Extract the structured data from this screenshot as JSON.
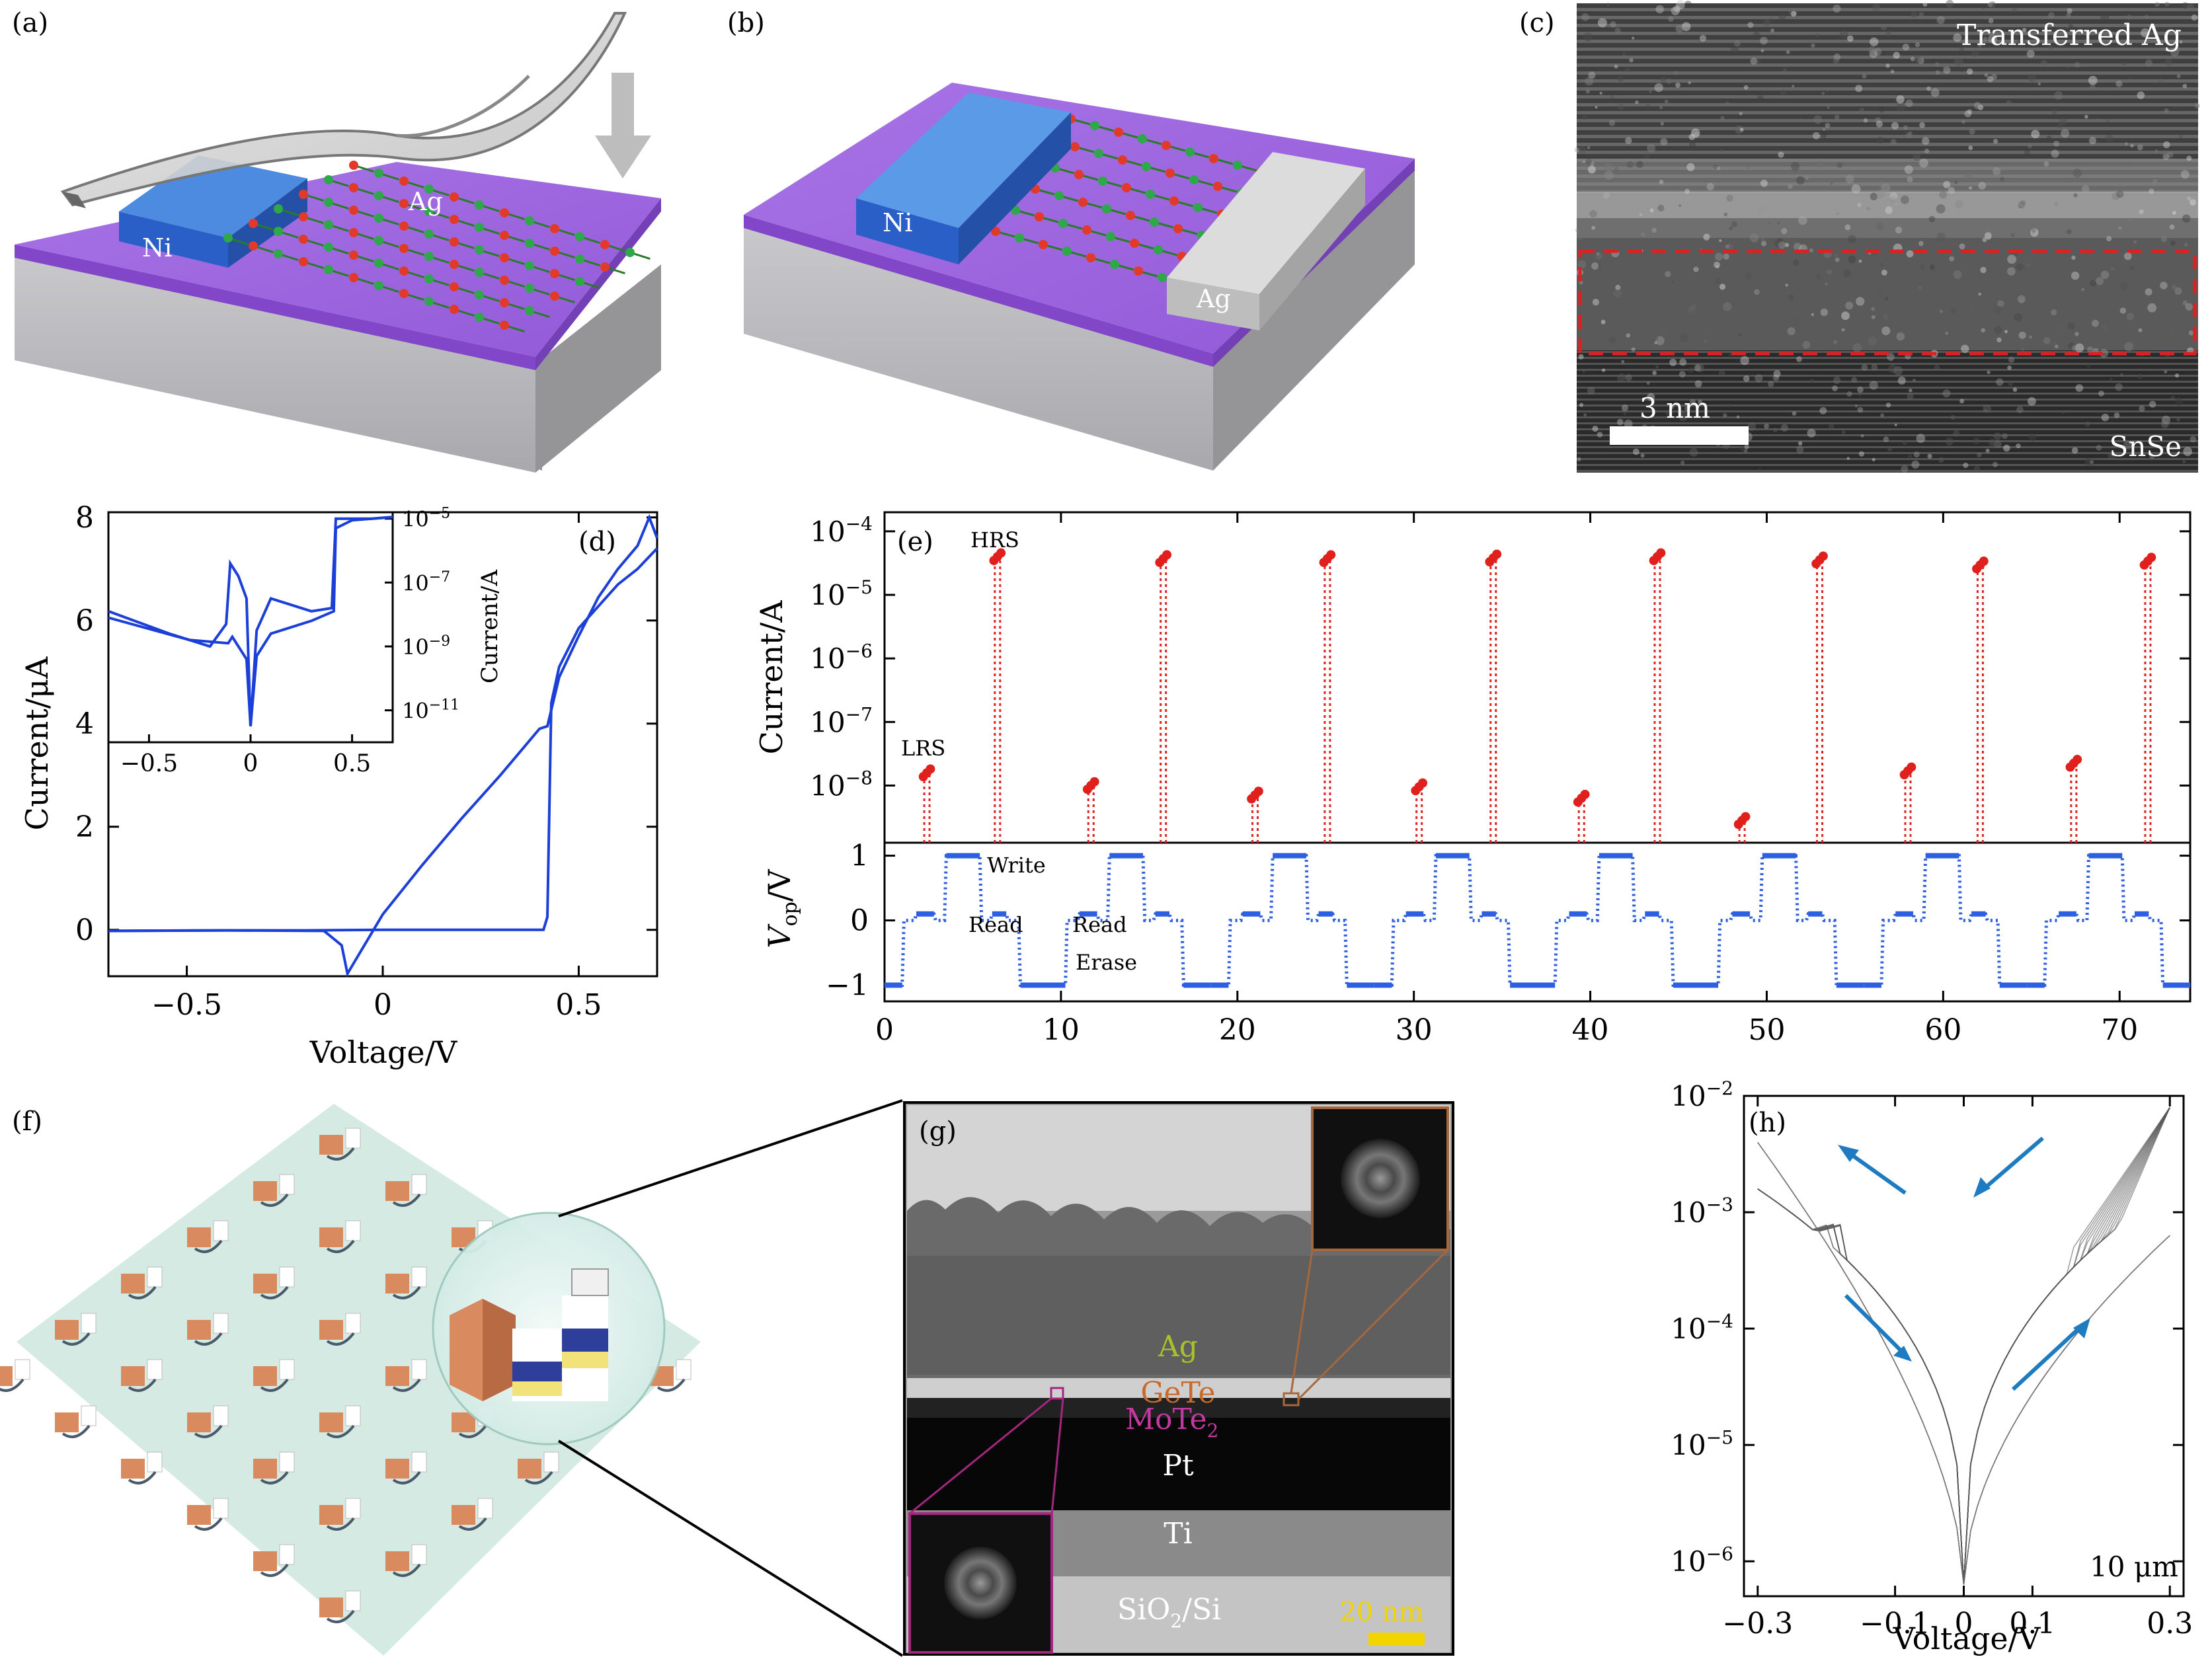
{
  "panel_letters": [
    "(a)",
    "(b)",
    "(c)",
    "(d)",
    "(e)",
    "(f)",
    "(g)",
    "(h)"
  ],
  "panel_a": {
    "labels": [
      "Ni",
      "Ag"
    ]
  },
  "panel_b": {
    "labels": [
      "Ni",
      "Ag"
    ]
  },
  "panel_c": {
    "title_label": "Transferred Ag",
    "scale_label": "3 nm",
    "bottom_label": "SnSe"
  },
  "panel_g": {
    "layer_labels": [
      "Ag",
      "GeTe",
      "MoTe",
      "Pt",
      "Ti",
      "SiO",
      "/Si"
    ],
    "scale_label": "20 nm"
  },
  "panel_h": {
    "note": "10 μm"
  },
  "chart_data": [
    {
      "id": "d",
      "type": "line",
      "xlabel": "Voltage/V",
      "ylabel": "Current/μA",
      "xlim": [
        -0.7,
        0.7
      ],
      "ylim": [
        -0.9,
        8.1
      ],
      "xticks": [
        "−0.5",
        "0",
        "0.5"
      ],
      "yticks": [
        "0",
        "2",
        "4",
        "6",
        "8"
      ],
      "series": [
        {
          "x": [
            -0.7,
            -0.4,
            -0.15,
            -0.105,
            -0.09,
            0.0,
            0.1,
            0.2,
            0.3,
            0.4,
            0.42,
            0.45,
            0.5,
            0.55,
            0.6,
            0.65,
            0.68,
            0.7
          ],
          "y": [
            -0.02,
            -0.01,
            -0.02,
            -0.3,
            -0.85,
            0.3,
            1.25,
            2.15,
            3.0,
            3.9,
            3.95,
            4.9,
            5.7,
            6.45,
            7.0,
            7.45,
            8.0,
            7.6
          ]
        },
        {
          "x": [
            0.7,
            0.65,
            0.6,
            0.5,
            0.45,
            0.43,
            0.42,
            0.41,
            0.3,
            0.0,
            -0.2,
            -0.4,
            -0.7
          ],
          "y": [
            7.4,
            7.0,
            6.7,
            5.85,
            5.1,
            4.4,
            0.25,
            0.0,
            0.0,
            0.0,
            -0.01,
            -0.01,
            -0.02
          ]
        }
      ],
      "inset": {
        "ylabel": "Current/A",
        "xticks": [
          "−0.5",
          "0",
          "0.5"
        ],
        "yticks": [
          "10−5",
          "10−7",
          "10−9",
          "10−11"
        ],
        "xlim": [
          -0.7,
          0.7
        ],
        "ylim_log": [
          -12,
          -4.8
        ],
        "series": [
          {
            "x": [
              -0.7,
              -0.4,
              -0.2,
              -0.12,
              -0.1,
              -0.06,
              -0.02,
              0.0,
              0.03,
              0.1,
              0.3,
              0.4,
              0.42,
              0.6,
              0.7
            ],
            "y_log": [
              -7.9,
              -8.6,
              -9.0,
              -8.3,
              -6.4,
              -6.8,
              -7.5,
              -11.5,
              -8.5,
              -7.5,
              -7.9,
              -7.8,
              -5.0,
              -5.0,
              -4.95
            ]
          },
          {
            "x": [
              0.7,
              0.5,
              0.42,
              0.41,
              0.3,
              0.1,
              0.03,
              0.0,
              -0.02,
              -0.09,
              -0.11,
              -0.3,
              -0.7
            ],
            "y_log": [
              -4.95,
              -5.05,
              -5.3,
              -7.9,
              -8.2,
              -8.6,
              -9.3,
              -11.5,
              -9.4,
              -8.7,
              -8.9,
              -8.8,
              -8.1
            ]
          }
        ]
      }
    },
    {
      "id": "e_top",
      "type": "scatter",
      "ylabel": "Current/A",
      "yscale": "log",
      "xlim": [
        0,
        74
      ],
      "ylim_log": [
        -8.9,
        -3.7
      ],
      "yticks": [
        "10−4",
        "10−5",
        "10−6",
        "10−7",
        "10−8"
      ],
      "annotations": [
        "HRS",
        "LRS"
      ],
      "x": [
        2.4,
        6.4,
        11.7,
        15.8,
        21.0,
        25.1,
        30.3,
        34.5,
        39.5,
        43.8,
        48.6,
        53.0,
        58.0,
        62.1,
        67.4,
        71.6
      ],
      "y_log": [
        -7.8,
        -4.4,
        -8.0,
        -4.43,
        -8.15,
        -4.43,
        -8.02,
        -4.42,
        -8.2,
        -4.4,
        -8.55,
        -4.45,
        -7.77,
        -4.53,
        -7.65,
        -4.47
      ]
    },
    {
      "id": "e_bottom",
      "type": "line",
      "xlabel": "",
      "ylabel_main": "V",
      "ylabel_sub": "op",
      "ylabel_unit": "/V",
      "xlim": [
        0,
        74
      ],
      "ylim": [
        -1.25,
        1.2
      ],
      "xticks": [
        "0",
        "10",
        "20",
        "30",
        "40",
        "50",
        "60",
        "70"
      ],
      "yticks": [
        "1",
        "0",
        "−1"
      ],
      "annotations": [
        "Write",
        "Read",
        "Read",
        "Erase"
      ],
      "cycle_period": 9.25,
      "pattern_t": [
        0,
        1.0,
        1.1,
        1.7,
        1.8,
        2.8,
        2.9,
        3.4,
        3.5,
        5.4,
        5.5,
        6.0,
        6.1,
        6.9,
        7.0,
        7.6,
        7.7,
        9.25
      ],
      "pattern_v": [
        -1,
        -1,
        0,
        0,
        0.1,
        0.1,
        0,
        0,
        1,
        1,
        0,
        0,
        0.1,
        0.1,
        0,
        0,
        -1,
        -1
      ]
    },
    {
      "id": "h",
      "type": "line",
      "xlabel": "Voltage/V",
      "yscale": "log",
      "xlim": [
        -0.32,
        0.32
      ],
      "ylim_log": [
        -6.3,
        -2
      ],
      "xticks": [
        "−0.3",
        "−0.1",
        "0",
        "0.1",
        "0.3"
      ],
      "yticks": [
        "10−2",
        "10−3",
        "10−4",
        "10−5",
        "10−6"
      ]
    }
  ]
}
